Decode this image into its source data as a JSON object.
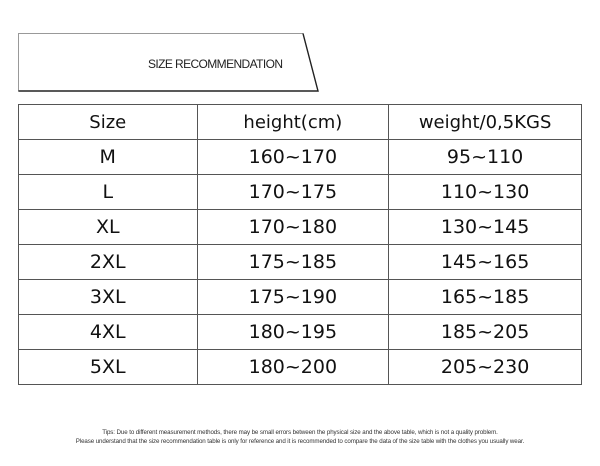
{
  "title": "SIZE RECOMMENDATION",
  "table": {
    "headers": [
      "Size",
      "height(cm)",
      "weight/0,5KGS"
    ],
    "rows": [
      [
        "M",
        "160~170",
        "95~110"
      ],
      [
        "L",
        "170~175",
        "110~130"
      ],
      [
        "XL",
        "170~180",
        "130~145"
      ],
      [
        "2XL",
        "175~185",
        "145~165"
      ],
      [
        "3XL",
        "175~190",
        "165~185"
      ],
      [
        "4XL",
        "180~195",
        "185~205"
      ],
      [
        "5XL",
        "180~200",
        "205~230"
      ]
    ]
  },
  "tips": [
    "Tips: Due to different measurement methods, there may be small errors between the physical size and the above table, which is not a quality problem.",
    "Please understand that the size recommendation table is only for reference and it is recommended to compare the data of the size table with the clothes you usually wear."
  ]
}
